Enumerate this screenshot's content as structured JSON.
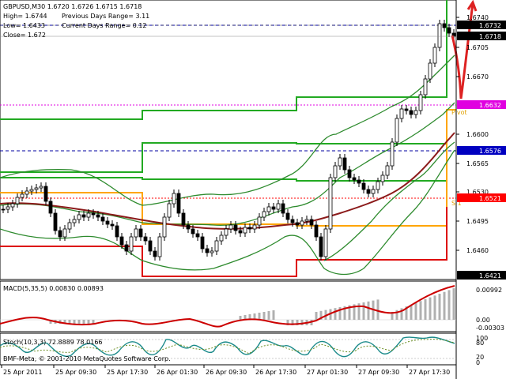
{
  "chart_info": {
    "line1": "GBPUSD,M30  1.6720 1.6726 1.6715 1.6718",
    "high": "High= 1.6744",
    "low": "Low= 1.6433",
    "close": "Close= 1.672",
    "prev_range": "Previous Days Range= 3.11",
    "curr_range": "Current Days Range= 0.12"
  },
  "price_axis": {
    "ticks": [
      "1.6740",
      "1.6705",
      "1.6670",
      "1.6600",
      "1.6565",
      "1.6530",
      "1.6495",
      "1.6460"
    ],
    "tags": [
      {
        "text": "1.6732",
        "bg": "#000000",
        "fg": "#ffffff"
      },
      {
        "text": "1.6718",
        "bg": "#000000",
        "fg": "#ffffff"
      },
      {
        "text": "1.6632",
        "bg": "#e000e0",
        "fg": "#ffffff"
      },
      {
        "text": "1.6576",
        "bg": "#0000c0",
        "fg": "#ffffff"
      },
      {
        "text": "1.6521",
        "bg": "#ff0000",
        "fg": "#ffffff"
      },
      {
        "text": "1.6421",
        "bg": "#000000",
        "fg": "#ffffff"
      }
    ]
  },
  "level_labels": {
    "pivot": "Pivot",
    "s1": "S 1"
  },
  "macd": {
    "title": "MACD(5,35,5) 0.00830 0.00893",
    "ticks": [
      "0.00992",
      "0.00",
      "-0.00303"
    ]
  },
  "stoch": {
    "title": "Stoch(10,3,3) 72.8889 78.0166",
    "ticks": [
      "100",
      "80",
      "20",
      "0"
    ]
  },
  "watermark": "BMF-Meta, © 2001-2010 MetaQuotes Software Corp.",
  "time_axis": {
    "labels": [
      "25 Apr 2011",
      "25 Apr 09:30",
      "25 Apr 17:30",
      "26 Apr 01:30",
      "26 Apr 09:30",
      "26 Apr 17:30",
      "27 Apr 01:30",
      "27 Apr 09:30",
      "27 Apr 17:30"
    ]
  },
  "colors": {
    "bollinger": "#2e8b2e",
    "envelope": "#00b000",
    "ma": "#8b1a1a",
    "pivot_line": "#e000e0",
    "r_line": "#0000a0",
    "s_line": "#ff0000",
    "daily_high": "#22aa22",
    "daily_low": "#dd0000",
    "orange_range": "#ffa500",
    "macd_hist": "#b0b0b0",
    "macd_signal": "#cc0000",
    "stoch_main": "#1a8a8a",
    "stoch_signal": "#6b8e23"
  }
}
